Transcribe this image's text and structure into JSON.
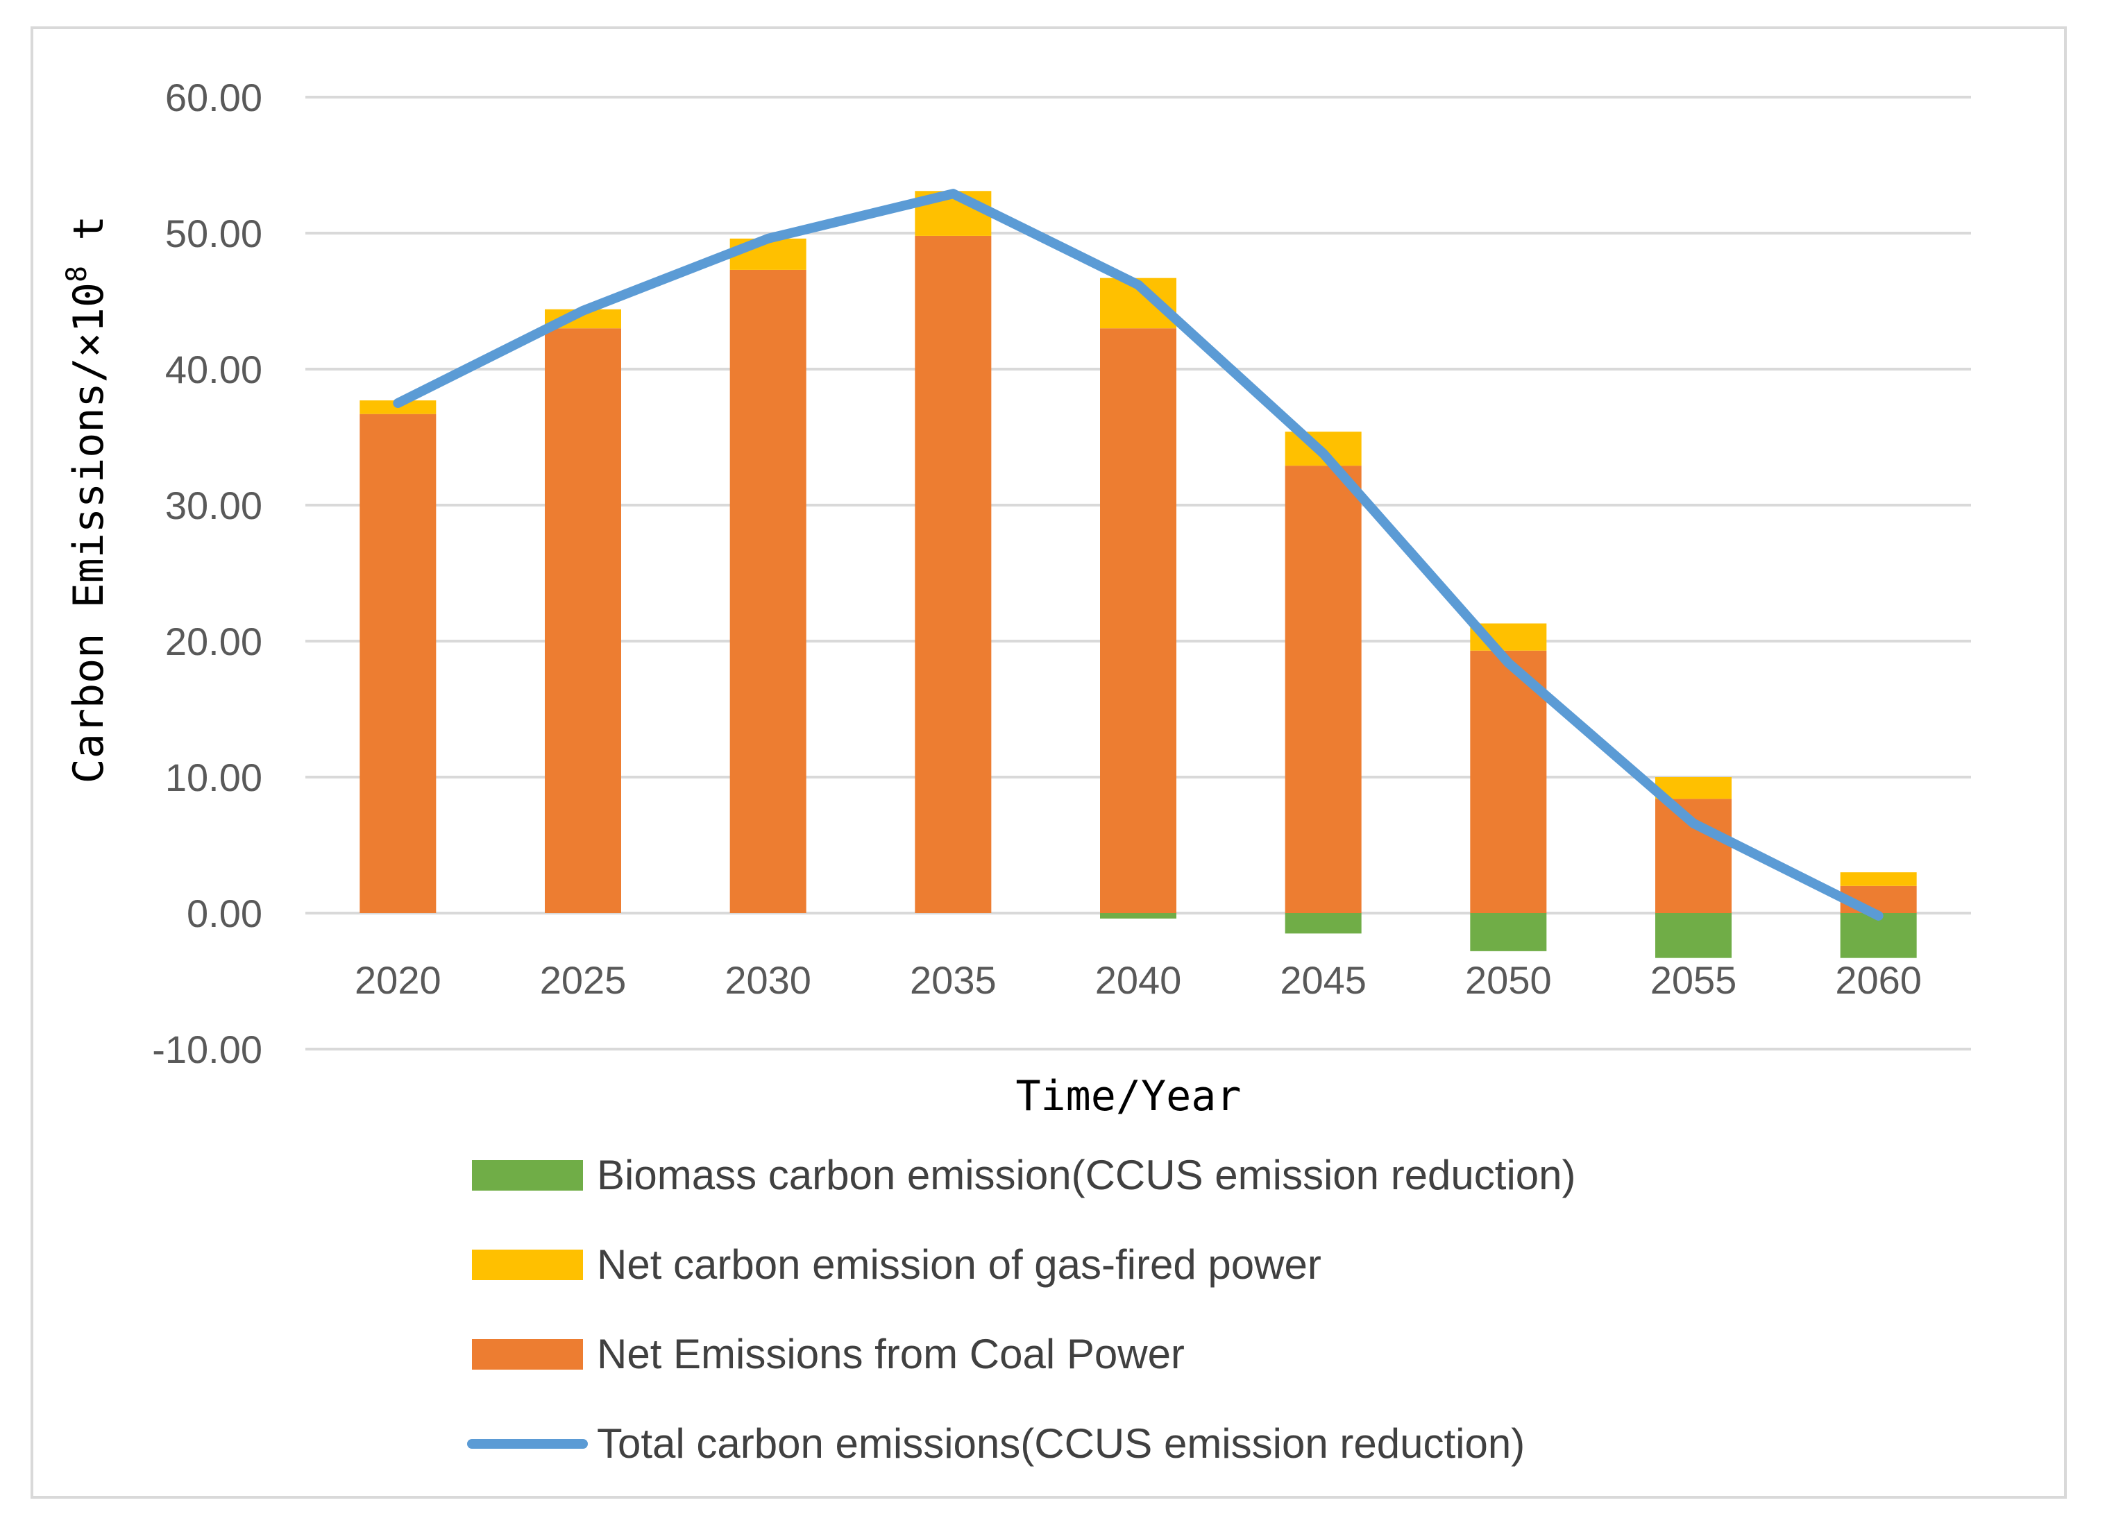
{
  "chart_data": {
    "type": "bar",
    "stacked": true,
    "title": "",
    "xlabel": "Time/Year",
    "ylabel": "Carbon Emissions/×10",
    "ylabel_superscript": "8",
    "ylabel_suffix": " t",
    "ylim": [
      -10,
      60
    ],
    "ytick_step": 10,
    "ytick_labels": [
      "-10.00",
      "0.00",
      "10.00",
      "20.00",
      "30.00",
      "40.00",
      "50.00",
      "60.00"
    ],
    "grid": true,
    "legend_position": "bottom",
    "categories": [
      "2020",
      "2025",
      "2030",
      "2035",
      "2040",
      "2045",
      "2050",
      "2055",
      "2060"
    ],
    "series": [
      {
        "name": "Biomass carbon emission(CCUS emission reduction)",
        "kind": "bar",
        "color": "#70ad47",
        "values": [
          0,
          0,
          0,
          0,
          -0.4,
          -1.5,
          -2.8,
          -3.3,
          -3.3
        ]
      },
      {
        "name": "Net carbon emission of gas-fired power",
        "kind": "bar",
        "color": "#ffc000",
        "values": [
          1.0,
          1.4,
          2.3,
          3.3,
          3.7,
          2.5,
          2.0,
          1.6,
          1.0
        ]
      },
      {
        "name": "Net Emissions from Coal Power",
        "kind": "bar",
        "color": "#ed7d31",
        "values": [
          36.7,
          43.0,
          47.3,
          49.8,
          43.0,
          32.9,
          19.3,
          8.4,
          2.0
        ]
      },
      {
        "name": "Total carbon emissions(CCUS emission reduction)",
        "kind": "line",
        "color": "#5b9bd5",
        "values": [
          37.5,
          44.3,
          49.6,
          52.9,
          46.2,
          33.8,
          18.4,
          6.6,
          -0.2
        ]
      }
    ]
  },
  "colors": {
    "grid": "#d9d9d9",
    "frame": "#d9d9d9",
    "tick_text": "#595959"
  }
}
